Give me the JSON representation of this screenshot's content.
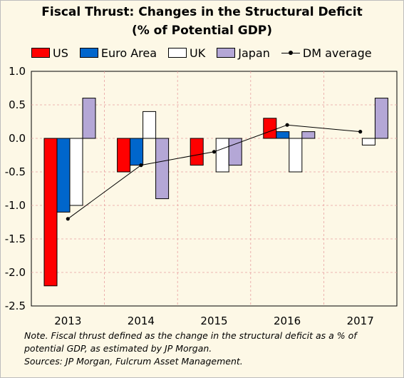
{
  "chart_data": {
    "type": "bar",
    "title_line1": "Fiscal Thrust: Changes in the Structural Deficit",
    "title_line2": "(% of Potential GDP)",
    "categories": [
      "2013",
      "2014",
      "2015",
      "2016",
      "2017"
    ],
    "series": [
      {
        "name": "US",
        "color": "#ff0000",
        "values": [
          -2.2,
          -0.5,
          -0.4,
          0.3,
          null
        ]
      },
      {
        "name": "Euro Area",
        "color": "#0066cc",
        "values": [
          -1.1,
          -0.4,
          null,
          0.1,
          null
        ]
      },
      {
        "name": "UK",
        "color": "#ffffff",
        "values": [
          -1.0,
          0.4,
          -0.5,
          -0.5,
          -0.1
        ]
      },
      {
        "name": "Japan",
        "color": "#b4a7d6",
        "values": [
          0.6,
          -0.9,
          -0.4,
          0.1,
          0.6
        ]
      }
    ],
    "line_series": {
      "name": "DM average",
      "type": "line",
      "color": "#000000",
      "values": [
        -1.2,
        -0.4,
        -0.2,
        0.2,
        0.1
      ]
    },
    "ylim": [
      -2.5,
      1.0
    ],
    "yticks": [
      "1.0",
      "0.5",
      "0.0",
      "-0.5",
      "-1.0",
      "-1.5",
      "-2.0",
      "-2.5"
    ],
    "xlabel": "",
    "ylabel": "",
    "grid": true,
    "legend_position": "top"
  },
  "note_line1": "Note. Fiscal thrust defined as the change in the structural deficit as a % of potential GDP, as estimated by JP Morgan.",
  "note_line2": "Sources: JP Morgan, Fulcrum Asset Management."
}
